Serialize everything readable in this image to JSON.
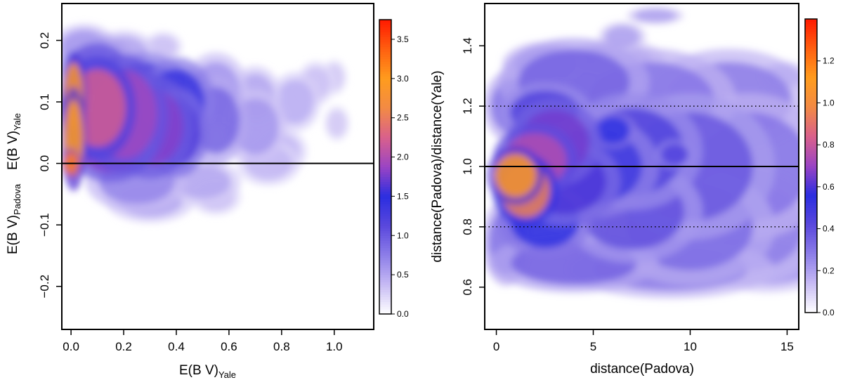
{
  "chart_data": [
    {
      "type": "heatmap",
      "xlabel": {
        "main": "E(B    V)",
        "sub": "Yale"
      },
      "ylabel": {
        "left": {
          "main": "E(B    V)",
          "sub": "Padova"
        },
        "right": {
          "main": "E(B    V)",
          "sub": "Yale"
        }
      },
      "xlim": [
        -0.035,
        1.15
      ],
      "ylim": [
        -0.27,
        0.26
      ],
      "x_ticks": [
        0.0,
        0.2,
        0.4,
        0.6,
        0.8,
        1.0
      ],
      "x_tick_labels": [
        "0.0",
        "0.2",
        "0.4",
        "0.6",
        "0.8",
        "1.0"
      ],
      "y_ticks": [
        -0.2,
        -0.1,
        0.0,
        0.1,
        0.2
      ],
      "y_tick_labels": [
        "−0.2",
        "−0.1",
        "0.0",
        "0.1",
        "0.2"
      ],
      "reference_lines": [
        {
          "y": 0.0,
          "style": "solid"
        }
      ],
      "colorbar": {
        "range": [
          0,
          3.75
        ],
        "ticks": [
          0.0,
          0.5,
          1.0,
          1.5,
          2.0,
          2.5,
          3.0,
          3.5
        ],
        "tick_labels": [
          "0.0",
          "0.5",
          "1.0",
          "1.5",
          "2.0",
          "2.5",
          "3.0",
          "3.5"
        ],
        "colors": [
          "#ffffff",
          "#c7bbf4",
          "#8d7ee8",
          "#5a48dc",
          "#2b2ee0",
          "#9a44c4",
          "#d9608c",
          "#f28a45",
          "#ff9c1e",
          "#ff6010",
          "#ff1a00"
        ]
      },
      "density_blobs": [
        {
          "x": 0.01,
          "y": 0.11,
          "value": 2.9,
          "sx": 0.02,
          "sy": 0.03
        },
        {
          "x": 0.01,
          "y": 0.04,
          "value": 3.0,
          "sx": 0.02,
          "sy": 0.035
        },
        {
          "x": 0.0,
          "y": 0.0,
          "value": 3.2,
          "sx": 0.015,
          "sy": 0.01
        },
        {
          "x": 0.1,
          "y": 0.09,
          "value": 2.2,
          "sx": 0.06,
          "sy": 0.035
        },
        {
          "x": 0.2,
          "y": 0.08,
          "value": 1.9,
          "sx": 0.07,
          "sy": 0.04
        },
        {
          "x": 0.3,
          "y": 0.06,
          "value": 1.8,
          "sx": 0.07,
          "sy": 0.035
        },
        {
          "x": 0.4,
          "y": 0.05,
          "value": 1.6,
          "sx": 0.05,
          "sy": 0.03
        },
        {
          "x": 0.15,
          "y": 0.03,
          "value": 1.8,
          "sx": 0.07,
          "sy": 0.025
        },
        {
          "x": 0.4,
          "y": 0.1,
          "value": 1.4,
          "sx": 0.06,
          "sy": 0.03
        },
        {
          "x": 0.28,
          "y": 0.12,
          "value": 1.3,
          "sx": 0.07,
          "sy": 0.025
        },
        {
          "x": 0.1,
          "y": 0.16,
          "value": 1.0,
          "sx": 0.06,
          "sy": 0.02
        },
        {
          "x": 0.05,
          "y": 0.19,
          "value": 0.6,
          "sx": 0.05,
          "sy": 0.015
        },
        {
          "x": 0.55,
          "y": 0.07,
          "value": 0.9,
          "sx": 0.05,
          "sy": 0.03
        },
        {
          "x": 0.55,
          "y": 0.12,
          "value": 0.6,
          "sx": 0.05,
          "sy": 0.025
        },
        {
          "x": 0.7,
          "y": 0.06,
          "value": 0.6,
          "sx": 0.05,
          "sy": 0.025
        },
        {
          "x": 0.7,
          "y": 0.11,
          "value": 0.5,
          "sx": 0.04,
          "sy": 0.02
        },
        {
          "x": 0.85,
          "y": 0.1,
          "value": 0.45,
          "sx": 0.04,
          "sy": 0.02
        },
        {
          "x": 0.93,
          "y": 0.13,
          "value": 0.35,
          "sx": 0.03,
          "sy": 0.015
        },
        {
          "x": 1.0,
          "y": 0.14,
          "value": 0.3,
          "sx": 0.02,
          "sy": 0.012
        },
        {
          "x": 1.01,
          "y": 0.065,
          "value": 0.3,
          "sx": 0.02,
          "sy": 0.012
        },
        {
          "x": 0.8,
          "y": 0.02,
          "value": 0.4,
          "sx": 0.04,
          "sy": 0.015
        },
        {
          "x": 0.25,
          "y": -0.03,
          "value": 0.7,
          "sx": 0.08,
          "sy": 0.02
        },
        {
          "x": 0.3,
          "y": -0.06,
          "value": 0.5,
          "sx": 0.07,
          "sy": 0.015
        },
        {
          "x": 0.5,
          "y": -0.03,
          "value": 0.5,
          "sx": 0.06,
          "sy": 0.015
        },
        {
          "x": 0.55,
          "y": -0.055,
          "value": 0.35,
          "sx": 0.04,
          "sy": 0.012
        },
        {
          "x": 0.75,
          "y": 0.0,
          "value": 0.4,
          "sx": 0.05,
          "sy": 0.015
        },
        {
          "x": 0.35,
          "y": 0.19,
          "value": 0.35,
          "sx": 0.03,
          "sy": 0.01
        },
        {
          "x": 0.2,
          "y": 0.18,
          "value": 0.5,
          "sx": 0.05,
          "sy": 0.015
        }
      ]
    },
    {
      "type": "heatmap",
      "xlabel": "distance(Padova)",
      "ylabel": "distance(Padova)/distance(Yale)",
      "xlim": [
        -0.6,
        15.6
      ],
      "ylim": [
        0.46,
        1.54
      ],
      "x_ticks": [
        0,
        5,
        10,
        15
      ],
      "x_tick_labels": [
        "0",
        "5",
        "10",
        "15"
      ],
      "y_ticks": [
        0.6,
        0.8,
        1.0,
        1.2,
        1.4
      ],
      "y_tick_labels": [
        "0.6",
        "0.8",
        "1.0",
        "1.2",
        "1.4"
      ],
      "reference_lines": [
        {
          "y": 1.0,
          "style": "solid"
        },
        {
          "y": 0.8,
          "style": "dotted"
        },
        {
          "y": 1.2,
          "style": "dotted"
        }
      ],
      "colorbar": {
        "range": [
          0,
          1.4
        ],
        "ticks": [
          0.0,
          0.2,
          0.4,
          0.6,
          0.8,
          1.0,
          1.2
        ],
        "tick_labels": [
          "0.0",
          "0.2",
          "0.4",
          "0.6",
          "0.8",
          "1.0",
          "1.2"
        ],
        "colors": [
          "#ffffff",
          "#c7bbf4",
          "#8d7ee8",
          "#5a48dc",
          "#2b2ee0",
          "#9a44c4",
          "#d9608c",
          "#f28a45",
          "#ff9c1e",
          "#ff6010",
          "#ff1a00"
        ]
      },
      "density_blobs": [
        {
          "x": 1.0,
          "y": 0.97,
          "value": 1.1,
          "sx": 0.6,
          "sy": 0.04
        },
        {
          "x": 1.5,
          "y": 0.92,
          "value": 0.95,
          "sx": 0.7,
          "sy": 0.05
        },
        {
          "x": 2.0,
          "y": 1.02,
          "value": 0.75,
          "sx": 0.9,
          "sy": 0.05
        },
        {
          "x": 3.0,
          "y": 1.08,
          "value": 0.65,
          "sx": 1.0,
          "sy": 0.06
        },
        {
          "x": 3.5,
          "y": 0.95,
          "value": 0.6,
          "sx": 1.2,
          "sy": 0.06
        },
        {
          "x": 5.0,
          "y": 1.0,
          "value": 0.5,
          "sx": 1.4,
          "sy": 0.07
        },
        {
          "x": 2.5,
          "y": 0.82,
          "value": 0.55,
          "sx": 1.0,
          "sy": 0.05
        },
        {
          "x": 2.5,
          "y": 1.18,
          "value": 0.45,
          "sx": 1.0,
          "sy": 0.04
        },
        {
          "x": 7.0,
          "y": 1.05,
          "value": 0.45,
          "sx": 1.5,
          "sy": 0.08
        },
        {
          "x": 7.0,
          "y": 0.85,
          "value": 0.4,
          "sx": 1.5,
          "sy": 0.07
        },
        {
          "x": 10.0,
          "y": 1.0,
          "value": 0.38,
          "sx": 1.8,
          "sy": 0.1
        },
        {
          "x": 10.0,
          "y": 0.8,
          "value": 0.33,
          "sx": 1.8,
          "sy": 0.08
        },
        {
          "x": 13.0,
          "y": 1.0,
          "value": 0.3,
          "sx": 1.8,
          "sy": 0.1
        },
        {
          "x": 13.0,
          "y": 0.8,
          "value": 0.28,
          "sx": 1.6,
          "sy": 0.08
        },
        {
          "x": 4.0,
          "y": 1.28,
          "value": 0.35,
          "sx": 1.6,
          "sy": 0.06
        },
        {
          "x": 8.0,
          "y": 1.22,
          "value": 0.3,
          "sx": 1.8,
          "sy": 0.07
        },
        {
          "x": 12.0,
          "y": 1.22,
          "value": 0.28,
          "sx": 1.8,
          "sy": 0.07
        },
        {
          "x": 4.0,
          "y": 0.68,
          "value": 0.35,
          "sx": 1.8,
          "sy": 0.04
        },
        {
          "x": 9.0,
          "y": 0.66,
          "value": 0.28,
          "sx": 2.2,
          "sy": 0.04
        },
        {
          "x": 14.0,
          "y": 0.68,
          "value": 0.22,
          "sx": 1.4,
          "sy": 0.04
        },
        {
          "x": 0.5,
          "y": 0.75,
          "value": 0.3,
          "sx": 0.5,
          "sy": 0.06
        },
        {
          "x": 0.8,
          "y": 1.2,
          "value": 0.3,
          "sx": 0.6,
          "sy": 0.05
        },
        {
          "x": 2.5,
          "y": 1.34,
          "value": 0.25,
          "sx": 0.9,
          "sy": 0.03
        },
        {
          "x": 6.2,
          "y": 1.36,
          "value": 0.2,
          "sx": 1.0,
          "sy": 0.025
        },
        {
          "x": 14.8,
          "y": 1.3,
          "value": 0.22,
          "sx": 0.5,
          "sy": 0.02
        },
        {
          "x": 6.5,
          "y": 1.43,
          "value": 0.2,
          "sx": 0.5,
          "sy": 0.02
        },
        {
          "x": 8.2,
          "y": 1.5,
          "value": 0.2,
          "sx": 0.6,
          "sy": 0.012
        },
        {
          "x": 6.0,
          "y": 1.12,
          "value": 0.55,
          "sx": 0.5,
          "sy": 0.025
        },
        {
          "x": 9.2,
          "y": 1.04,
          "value": 0.45,
          "sx": 0.4,
          "sy": 0.02
        }
      ]
    }
  ]
}
